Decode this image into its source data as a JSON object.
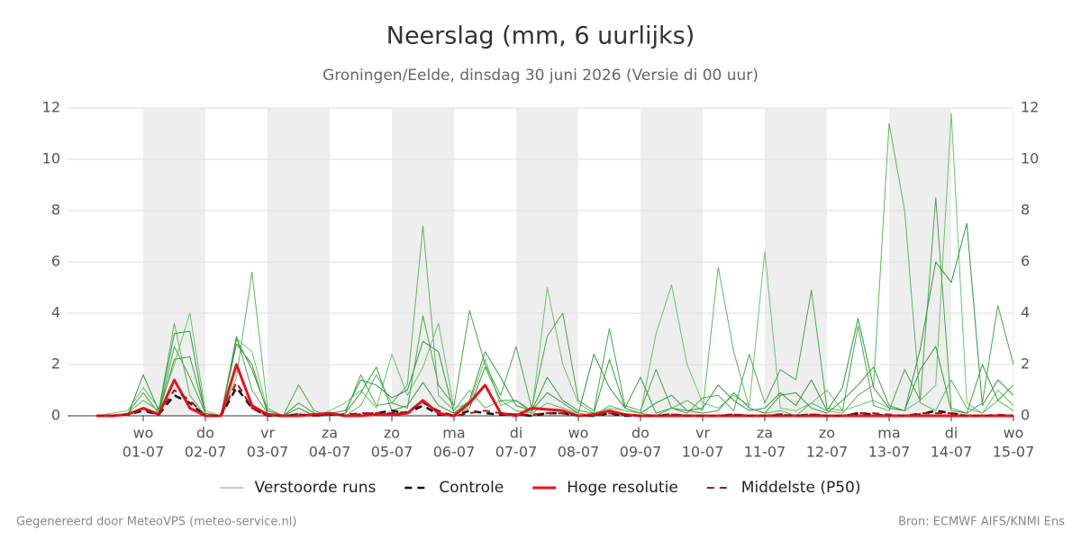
{
  "chart_data": {
    "type": "line",
    "title": "Neerslag (mm, 6 uurlijks)",
    "subtitle": "Groningen/Eelde, dinsdag 30 juni 2026 (Versie di 00 uur)",
    "categories": [
      null,
      null,
      null,
      "01-07",
      null,
      null,
      null,
      "02-07",
      null,
      null,
      null,
      "03-07",
      null,
      null,
      null,
      "04-07",
      null,
      null,
      null,
      "05-07",
      null,
      null,
      null,
      "06-07",
      null,
      null,
      null,
      "07-07",
      null,
      null,
      null,
      "08-07",
      null,
      null,
      null,
      "09-07",
      null,
      null,
      null,
      "10-07",
      null,
      null,
      null,
      "11-07",
      null,
      null,
      null,
      "12-07",
      null,
      null,
      null,
      "13-07",
      null,
      null,
      null,
      "14-07",
      null,
      null,
      null,
      "15-07"
    ],
    "weekdays": [
      null,
      null,
      null,
      "wo",
      null,
      null,
      null,
      "do",
      null,
      null,
      null,
      "vr",
      null,
      null,
      null,
      "za",
      null,
      null,
      null,
      "zo",
      null,
      null,
      null,
      "ma",
      null,
      null,
      null,
      "di",
      null,
      null,
      null,
      "wo",
      null,
      null,
      null,
      "do",
      null,
      null,
      null,
      "vr",
      null,
      null,
      null,
      "za",
      null,
      null,
      null,
      "zo",
      null,
      null,
      null,
      "ma",
      null,
      null,
      null,
      "di",
      null,
      null,
      null,
      "wo"
    ],
    "ylim": [
      0,
      12
    ],
    "yticks": [
      0,
      2,
      4,
      6,
      8,
      10,
      12
    ],
    "grid": true,
    "ensemble": {
      "name": "Verstoorde runs",
      "runs": [
        {
          "color": "#5cb85c",
          "values": [
            0,
            0,
            0.1,
            0.6,
            0.2,
            3.6,
            0.8,
            0,
            0,
            1.5,
            5.6,
            0.3,
            0,
            0,
            0.1,
            0,
            0,
            0.4,
            1.6,
            0.5,
            1.2,
            7.4,
            0.8,
            0.2,
            1.0,
            0.3,
            0.6,
            0.2,
            0.1,
            0.5,
            0.3,
            0.1,
            0,
            0.4,
            0.2,
            0.1,
            0,
            0.3,
            0.6,
            0.2,
            5.8,
            2.5,
            0.3,
            0.1,
            0.2,
            0,
            0.5,
            0.2,
            0.1,
            0.8,
            1.2,
            11.4,
            8.0,
            0.5,
            0.2,
            1.4,
            0.3,
            0.1,
            0.6,
            0.2
          ]
        },
        {
          "color": "#6cc46c",
          "values": [
            0,
            0.1,
            0.2,
            1.1,
            0.3,
            2.0,
            4.0,
            0.2,
            0,
            3.0,
            2.5,
            0.2,
            0,
            0.1,
            0,
            0.2,
            0.5,
            1.0,
            0.3,
            2.4,
            0.8,
            1.9,
            3.6,
            0.3,
            0.5,
            2.2,
            0.4,
            0.6,
            0.1,
            5.0,
            2.0,
            0.5,
            0.1,
            0.3,
            0.2,
            0.1,
            3.2,
            5.1,
            2.0,
            0.5,
            0.3,
            0.8,
            0.4,
            6.4,
            0.3,
            0.2,
            0.5,
            1.0,
            0.2,
            0.4,
            0.6,
            0.3,
            0.2,
            0.6,
            1.2,
            11.8,
            0.5,
            0.1,
            1.0,
            0.4
          ]
        },
        {
          "color": "#4aa84a",
          "values": [
            0,
            0,
            0.1,
            0.9,
            0.1,
            2.7,
            1.5,
            0.1,
            0,
            3.1,
            1.0,
            0.1,
            0,
            1.2,
            0.2,
            0,
            0.1,
            1.6,
            0.4,
            0.5,
            0.3,
            3.9,
            1.2,
            0.4,
            4.1,
            2.0,
            0.8,
            2.7,
            0.3,
            3.1,
            4.0,
            0.6,
            0.2,
            3.4,
            0.4,
            0.2,
            1.8,
            0.3,
            0.1,
            0.7,
            0.8,
            0.2,
            2.4,
            0.5,
            1.8,
            1.4,
            4.9,
            0.3,
            0.2,
            3.5,
            0.4,
            0.2,
            1.8,
            0.6,
            8.5,
            0.3,
            0.1,
            0.5,
            4.3,
            2.0
          ]
        },
        {
          "color": "#2e9a3e",
          "values": [
            0,
            0,
            0,
            1.6,
            0.2,
            3.2,
            3.3,
            0,
            0,
            2.8,
            2.0,
            0.1,
            0,
            0.3,
            0,
            0.1,
            0.2,
            1.4,
            1.2,
            0.7,
            1.0,
            2.9,
            2.5,
            0.1,
            0.6,
            2.5,
            1.5,
            0.4,
            0.2,
            0.9,
            0.5,
            0.1,
            2.4,
            1.1,
            0.3,
            0.1,
            0.5,
            0.8,
            0.2,
            0.3,
            1.2,
            0.6,
            0.2,
            0.3,
            0.9,
            0.4,
            1.4,
            0.2,
            1.1,
            3.8,
            1.1,
            0.3,
            0.2,
            2.6,
            6.0,
            5.2,
            7.5,
            0.4,
            1.4,
            0.8
          ]
        },
        {
          "color": "#38a038",
          "values": [
            0,
            0,
            0.1,
            0.3,
            0.1,
            2.2,
            2.3,
            0.1,
            0,
            3.0,
            1.8,
            0.2,
            0,
            0.5,
            0.1,
            0,
            0.1,
            0.9,
            1.9,
            0.2,
            0.4,
            1.3,
            0.4,
            0.1,
            0.3,
            1.9,
            0.6,
            0.6,
            0.2,
            1.5,
            0.6,
            0.2,
            0.1,
            2.2,
            0.3,
            1.5,
            0.1,
            0.3,
            0.2,
            0.1,
            0.2,
            0.9,
            0.3,
            0.1,
            0.8,
            0.9,
            0.3,
            0.1,
            0.6,
            1.2,
            1.9,
            0.4,
            0.2,
            1.8,
            2.7,
            0.2,
            0.1,
            2.0,
            0.6,
            1.2
          ]
        }
      ]
    },
    "series": [
      {
        "name": "Controle",
        "color": "#111111",
        "style": "dashed",
        "line_width": 2.5,
        "values": [
          0,
          0,
          0.05,
          0.2,
          0.05,
          0.8,
          0.5,
          0,
          0,
          1.1,
          0.3,
          0,
          0,
          0.05,
          0,
          0.05,
          0,
          0.05,
          0.1,
          0.2,
          0.1,
          0.4,
          0.05,
          0,
          0.2,
          0.1,
          0.05,
          0.05,
          0,
          0.1,
          0.1,
          0,
          0,
          0.1,
          0,
          0,
          0,
          0.05,
          0,
          0,
          0,
          0.05,
          0,
          0,
          0.05,
          0,
          0.05,
          0,
          0,
          0.1,
          0.05,
          0,
          0,
          0.05,
          0.2,
          0.1,
          0,
          0,
          0,
          0
        ]
      },
      {
        "name": "Hoge resolutie",
        "color": "#e8141c",
        "style": "solid",
        "line_width": 3,
        "values": [
          0,
          0,
          0.05,
          0.3,
          0.05,
          1.4,
          0.3,
          0,
          0,
          2.0,
          0.4,
          0.05,
          0,
          0,
          0.05,
          0.1,
          0,
          0,
          0.05,
          0.05,
          0.1,
          0.6,
          0.1,
          0,
          0.5,
          1.2,
          0.1,
          0,
          0.3,
          0.25,
          0.2,
          0,
          0.05,
          0.2,
          0.05,
          0,
          0,
          0,
          0,
          0,
          0,
          0,
          0,
          0,
          0,
          0,
          0,
          0,
          0,
          0,
          0,
          0,
          0,
          0,
          0,
          0,
          0,
          0,
          0,
          0
        ]
      },
      {
        "name": "Middelste (P50)",
        "color": "#a0141c",
        "style": "dashed",
        "line_width": 2,
        "values": [
          0,
          0,
          0.05,
          0.25,
          0.05,
          1.0,
          0.6,
          0,
          0,
          1.3,
          0.3,
          0,
          0,
          0.05,
          0,
          0.05,
          0.05,
          0.1,
          0.1,
          0.1,
          0.15,
          0.5,
          0.2,
          0,
          0.1,
          0.2,
          0.1,
          0.05,
          0.05,
          0.1,
          0.1,
          0,
          0,
          0.1,
          0.05,
          0,
          0,
          0.05,
          0,
          0,
          0,
          0.05,
          0,
          0,
          0.05,
          0,
          0.05,
          0,
          0,
          0.1,
          0.1,
          0.05,
          0,
          0.1,
          0.1,
          0.1,
          0,
          0,
          0.05,
          0
        ]
      }
    ],
    "footer_left": "Gegenereerd door MeteoVPS (meteo-service.nl)",
    "footer_right": "Bron: ECMWF AIFS/KNMI Ens"
  }
}
